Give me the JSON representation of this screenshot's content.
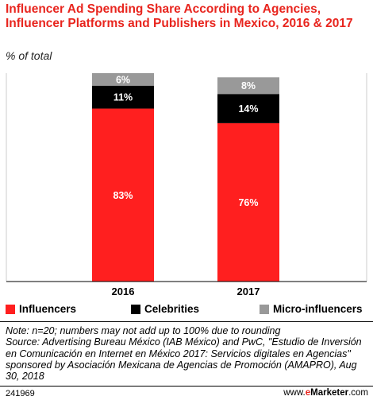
{
  "title": "Influencer Ad Spending Share According to Agencies, Influencer Platforms and Publishers in Mexico, 2016 & 2017",
  "subtitle": "% of total",
  "colors": {
    "influencers": "#ff1f1f",
    "celebrities": "#000000",
    "micro_influencers": "#999999",
    "title": "#e8251e"
  },
  "chart_data": {
    "type": "bar",
    "stacked": true,
    "categories": [
      "2016",
      "2017"
    ],
    "series": [
      {
        "name": "Influencers",
        "values": [
          83,
          76
        ],
        "color": "#ff1f1f",
        "labels": [
          "83%",
          "76%"
        ]
      },
      {
        "name": "Celebrities",
        "values": [
          11,
          14
        ],
        "color": "#000000",
        "labels": [
          "11%",
          "14%"
        ]
      },
      {
        "name": "Micro-influencers",
        "values": [
          6,
          8
        ],
        "color": "#999999",
        "labels": [
          "6%",
          "8%"
        ]
      }
    ],
    "ylim": [
      0,
      100
    ],
    "grid": false,
    "legend": "bottom"
  },
  "legend": {
    "items": [
      "Influencers",
      "Celebrities",
      "Micro-influencers"
    ]
  },
  "note": "Note: n=20; numbers may not add up to 100% due to rounding",
  "source": "Source: Advertising Bureau México (IAB México) and PwC, \"Estudio de Inversión en Comunicación en Internet en México 2017: Servicios digitales en Agencias\" sponsored by Asociación Mexicana de Agencias de Promoción (AMAPRO), Aug 30, 2018",
  "footer": {
    "id": "241969",
    "brand_prefix": "www.",
    "brand_e": "e",
    "brand_name": "Marketer",
    "brand_suffix": ".com"
  }
}
